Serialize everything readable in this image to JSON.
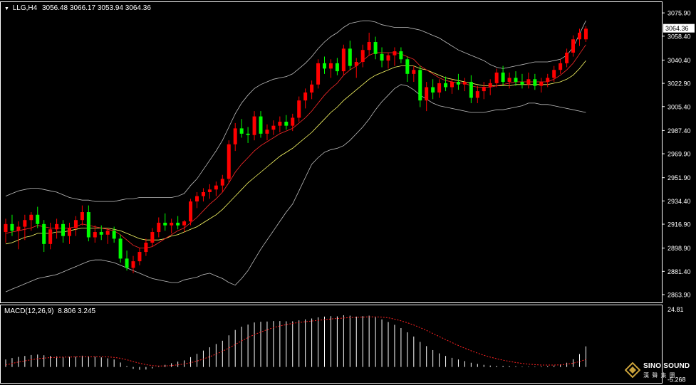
{
  "header": {
    "symbol": "LLG,H4",
    "ohlc": "3056.48 3066.17 3053.94 3064.36"
  },
  "macd_header": {
    "label": "MACD(12,26,9)",
    "values": "8.806 3.245"
  },
  "colors": {
    "background": "#000000",
    "bull": "#ff0000",
    "bear": "#00ff00",
    "ma_fast": "#ff2a2a",
    "ma_slow": "#ffff66",
    "bollinger": "#bfbfbf",
    "macd_hist": "#ffffff",
    "macd_signal": "#ff2222",
    "frame": "#ffffff"
  },
  "watermark": {
    "name": "SINO SOUND",
    "sub": "漢 聲 集 團",
    "icon": "diamond-logo-icon"
  },
  "chart_data": [
    {
      "type": "candlestick",
      "title": "LLG,H4",
      "ylim": [
        2858,
        3084
      ],
      "y_ticks": [
        "3075.90",
        "3058.40",
        "3040.40",
        "3022.90",
        "3005.40",
        "2987.40",
        "2969.90",
        "2951.90",
        "2934.40",
        "2916.90",
        "2898.90",
        "2881.40",
        "2863.90"
      ],
      "current_price_label": "3064.36",
      "ohlc": [
        [
          2911,
          2921,
          2903,
          2917
        ],
        [
          2917,
          2924,
          2908,
          2912
        ],
        [
          2912,
          2919,
          2898,
          2915
        ],
        [
          2915,
          2924,
          2905,
          2920
        ],
        [
          2920,
          2926,
          2912,
          2924
        ],
        [
          2924,
          2930,
          2914,
          2917
        ],
        [
          2917,
          2920,
          2896,
          2902
        ],
        [
          2902,
          2918,
          2898,
          2913
        ],
        [
          2913,
          2921,
          2906,
          2917
        ],
        [
          2917,
          2920,
          2903,
          2908
        ],
        [
          2908,
          2918,
          2902,
          2914
        ],
        [
          2914,
          2923,
          2908,
          2920
        ],
        [
          2920,
          2931,
          2916,
          2926
        ],
        [
          2926,
          2931,
          2904,
          2907
        ],
        [
          2907,
          2916,
          2903,
          2911
        ],
        [
          2911,
          2916,
          2905,
          2909
        ],
        [
          2909,
          2914,
          2902,
          2912
        ],
        [
          2912,
          2915,
          2903,
          2906
        ],
        [
          2906,
          2909,
          2888,
          2891
        ],
        [
          2891,
          2897,
          2882,
          2884
        ],
        [
          2884,
          2893,
          2880,
          2889
        ],
        [
          2889,
          2899,
          2886,
          2896
        ],
        [
          2896,
          2906,
          2893,
          2903
        ],
        [
          2903,
          2914,
          2900,
          2911
        ],
        [
          2911,
          2922,
          2907,
          2918
        ],
        [
          2918,
          2925,
          2912,
          2916
        ],
        [
          2916,
          2921,
          2910,
          2918
        ],
        [
          2918,
          2923,
          2913,
          2916
        ],
        [
          2916,
          2920,
          2911,
          2919
        ],
        [
          2919,
          2936,
          2916,
          2934
        ],
        [
          2934,
          2941,
          2929,
          2938
        ],
        [
          2938,
          2944,
          2934,
          2941
        ],
        [
          2941,
          2947,
          2936,
          2943
        ],
        [
          2943,
          2949,
          2938,
          2946
        ],
        [
          2946,
          2954,
          2941,
          2951
        ],
        [
          2951,
          2980,
          2948,
          2977
        ],
        [
          2977,
          2993,
          2972,
          2989
        ],
        [
          2989,
          2996,
          2982,
          2985
        ],
        [
          2985,
          2990,
          2978,
          2984
        ],
        [
          2984,
          3002,
          2980,
          2998
        ],
        [
          2998,
          3002,
          2982,
          2985
        ],
        [
          2985,
          2992,
          2980,
          2988
        ],
        [
          2988,
          2995,
          2984,
          2991
        ],
        [
          2991,
          2998,
          2986,
          2994
        ],
        [
          2994,
          2999,
          2988,
          2991
        ],
        [
          2991,
          3000,
          2987,
          2997
        ],
        [
          2997,
          3013,
          2994,
          3010
        ],
        [
          3010,
          3019,
          3004,
          3016
        ],
        [
          3016,
          3025,
          3011,
          3022
        ],
        [
          3022,
          3041,
          3019,
          3038
        ],
        [
          3038,
          3043,
          3030,
          3034
        ],
        [
          3034,
          3041,
          3027,
          3038
        ],
        [
          3038,
          3042,
          3029,
          3032
        ],
        [
          3032,
          3052,
          3029,
          3049
        ],
        [
          3049,
          3055,
          3033,
          3036
        ],
        [
          3036,
          3042,
          3027,
          3039
        ],
        [
          3039,
          3052,
          3035,
          3048
        ],
        [
          3048,
          3061,
          3044,
          3054
        ],
        [
          3054,
          3058,
          3041,
          3045
        ],
        [
          3045,
          3050,
          3035,
          3040
        ],
        [
          3040,
          3046,
          3034,
          3044
        ],
        [
          3044,
          3050,
          3036,
          3047
        ],
        [
          3047,
          3050,
          3038,
          3041
        ],
        [
          3041,
          3043,
          3024,
          3030
        ],
        [
          3030,
          3036,
          3024,
          3033
        ],
        [
          3033,
          3036,
          3005,
          3010
        ],
        [
          3010,
          3024,
          3002,
          3020
        ],
        [
          3020,
          3026,
          3011,
          3016
        ],
        [
          3016,
          3026,
          3012,
          3023
        ],
        [
          3023,
          3028,
          3017,
          3020
        ],
        [
          3020,
          3026,
          3015,
          3024
        ],
        [
          3024,
          3030,
          3018,
          3022
        ],
        [
          3022,
          3027,
          3017,
          3024
        ],
        [
          3024,
          3029,
          3008,
          3012
        ],
        [
          3012,
          3021,
          3008,
          3017
        ],
        [
          3017,
          3024,
          3011,
          3020
        ],
        [
          3020,
          3026,
          3014,
          3023
        ],
        [
          3023,
          3034,
          3020,
          3031
        ],
        [
          3031,
          3036,
          3021,
          3024
        ],
        [
          3024,
          3031,
          3019,
          3027
        ],
        [
          3027,
          3032,
          3021,
          3024
        ],
        [
          3024,
          3030,
          3019,
          3022
        ],
        [
          3022,
          3031,
          3019,
          3026
        ],
        [
          3026,
          3030,
          3018,
          3021
        ],
        [
          3021,
          3027,
          3016,
          3024
        ],
        [
          3024,
          3030,
          3020,
          3027
        ],
        [
          3027,
          3036,
          3024,
          3033
        ],
        [
          3033,
          3041,
          3030,
          3038
        ],
        [
          3038,
          3049,
          3035,
          3046
        ],
        [
          3046,
          3059,
          3043,
          3056
        ],
        [
          3056,
          3064,
          3051,
          3061
        ],
        [
          3056,
          3066,
          3054,
          3064
        ]
      ],
      "ma_fast": [
        2910,
        2911,
        2912,
        2913,
        2914,
        2916,
        2915,
        2914,
        2914,
        2914,
        2914,
        2915,
        2917,
        2916,
        2915,
        2914,
        2913,
        2912,
        2909,
        2905,
        2901,
        2899,
        2899,
        2900,
        2903,
        2906,
        2909,
        2912,
        2914,
        2918,
        2922,
        2927,
        2932,
        2936,
        2941,
        2948,
        2956,
        2962,
        2967,
        2972,
        2976,
        2979,
        2982,
        2985,
        2987,
        2989,
        2993,
        2997,
        3002,
        3008,
        3014,
        3019,
        3023,
        3029,
        3033,
        3036,
        3040,
        3044,
        3046,
        3046,
        3046,
        3046,
        3045,
        3043,
        3041,
        3036,
        3033,
        3030,
        3027,
        3025,
        3024,
        3023,
        3023,
        3021,
        3020,
        3020,
        3020,
        3021,
        3022,
        3023,
        3024,
        3024,
        3024,
        3024,
        3024,
        3024,
        3026,
        3029,
        3033,
        3038,
        3045,
        3052
      ],
      "ma_slow": [
        2902,
        2903,
        2905,
        2907,
        2908,
        2910,
        2910,
        2910,
        2911,
        2911,
        2912,
        2913,
        2914,
        2914,
        2914,
        2914,
        2914,
        2913,
        2912,
        2910,
        2908,
        2906,
        2905,
        2905,
        2905,
        2906,
        2908,
        2909,
        2911,
        2913,
        2915,
        2918,
        2921,
        2924,
        2928,
        2933,
        2938,
        2943,
        2948,
        2952,
        2956,
        2960,
        2964,
        2968,
        2971,
        2974,
        2978,
        2982,
        2986,
        2991,
        2996,
        3001,
        3005,
        3010,
        3014,
        3018,
        3022,
        3026,
        3029,
        3031,
        3033,
        3035,
        3036,
        3036,
        3036,
        3034,
        3033,
        3031,
        3029,
        3027,
        3026,
        3025,
        3024,
        3023,
        3022,
        3021,
        3021,
        3021,
        3021,
        3021,
        3022,
        3022,
        3022,
        3022,
        3022,
        3022,
        3023,
        3024,
        3026,
        3029,
        3034,
        3040
      ],
      "bb_upper": [
        2938,
        2940,
        2942,
        2943,
        2944,
        2944,
        2943,
        2942,
        2941,
        2939,
        2937,
        2936,
        2935,
        2935,
        2934,
        2934,
        2934,
        2934,
        2935,
        2936,
        2936,
        2937,
        2937,
        2937,
        2937,
        2937,
        2937,
        2938,
        2940,
        2946,
        2951,
        2958,
        2965,
        2972,
        2980,
        2990,
        3000,
        3008,
        3014,
        3019,
        3022,
        3024,
        3026,
        3027,
        3028,
        3030,
        3034,
        3038,
        3043,
        3049,
        3054,
        3058,
        3061,
        3065,
        3068,
        3069,
        3070,
        3070,
        3069,
        3067,
        3066,
        3065,
        3065,
        3065,
        3064,
        3063,
        3061,
        3059,
        3057,
        3054,
        3051,
        3048,
        3046,
        3044,
        3042,
        3040,
        3037,
        3035,
        3034,
        3035,
        3036,
        3037,
        3038,
        3039,
        3039,
        3039,
        3040,
        3041,
        3044,
        3050,
        3060,
        3070
      ],
      "bb_lower": [
        2866,
        2868,
        2870,
        2872,
        2874,
        2876,
        2877,
        2878,
        2879,
        2881,
        2883,
        2885,
        2887,
        2889,
        2890,
        2890,
        2889,
        2888,
        2886,
        2884,
        2882,
        2880,
        2878,
        2876,
        2875,
        2874,
        2873,
        2873,
        2875,
        2876,
        2877,
        2879,
        2880,
        2878,
        2876,
        2873,
        2871,
        2876,
        2882,
        2890,
        2898,
        2905,
        2912,
        2919,
        2926,
        2932,
        2942,
        2952,
        2962,
        2967,
        2971,
        2973,
        2974,
        2976,
        2980,
        2985,
        2990,
        2996,
        3003,
        3009,
        3014,
        3019,
        3022,
        3021,
        3018,
        3014,
        3011,
        3008,
        3006,
        3005,
        3004,
        3003,
        3002,
        3001,
        3001,
        3001,
        3002,
        3003,
        3003,
        3004,
        3005,
        3006,
        3008,
        3008,
        3007,
        3007,
        3006,
        3005,
        3004,
        3003,
        3002,
        3001
      ]
    },
    {
      "type": "bar",
      "title": "MACD(12,26,9)",
      "ylim": [
        -5.268,
        24.81
      ],
      "y_ticks": [
        "24.81",
        "-5.268"
      ],
      "histogram": [
        3.2,
        3.8,
        4.3,
        4.7,
        5.1,
        5.3,
        5.0,
        4.7,
        4.5,
        4.3,
        4.3,
        4.4,
        4.8,
        4.6,
        4.4,
        4.1,
        3.7,
        3.2,
        1.9,
        0.4,
        -0.8,
        -1.2,
        -1.1,
        -0.6,
        0.2,
        0.9,
        1.6,
        2.3,
        2.8,
        4.2,
        5.6,
        7.0,
        8.4,
        9.8,
        11.2,
        13.5,
        15.8,
        17.2,
        18.1,
        19.0,
        19.3,
        19.4,
        19.6,
        19.6,
        19.5,
        19.5,
        19.9,
        20.3,
        20.7,
        21.2,
        21.5,
        21.7,
        21.6,
        22.1,
        21.9,
        21.5,
        21.7,
        21.9,
        21.2,
        20.3,
        19.2,
        18.0,
        16.6,
        14.8,
        13.0,
        10.7,
        8.9,
        7.2,
        5.8,
        4.7,
        3.9,
        3.2,
        2.5,
        1.8,
        1.3,
        0.9,
        0.6,
        0.5,
        0.5,
        0.4,
        0.3,
        0.2,
        0.2,
        0.2,
        0.3,
        0.4,
        0.6,
        1.1,
        1.8,
        3.3,
        5.5,
        8.8
      ],
      "signal": [
        0.8,
        1.5,
        2.1,
        2.6,
        3.1,
        3.5,
        3.8,
        4.0,
        4.1,
        4.2,
        4.2,
        4.3,
        4.4,
        4.4,
        4.4,
        4.4,
        4.3,
        4.1,
        3.7,
        3.1,
        2.3,
        1.6,
        1.0,
        0.6,
        0.4,
        0.4,
        0.6,
        0.9,
        1.3,
        1.8,
        2.5,
        3.4,
        4.4,
        5.5,
        6.7,
        8.1,
        9.6,
        11.1,
        12.5,
        13.8,
        14.9,
        15.9,
        16.8,
        17.5,
        18.1,
        18.6,
        19.0,
        19.3,
        19.6,
        19.9,
        20.2,
        20.5,
        20.7,
        20.9,
        21.1,
        21.2,
        21.3,
        21.4,
        21.4,
        21.3,
        21.0,
        20.4,
        19.7,
        18.9,
        17.9,
        16.8,
        15.6,
        14.3,
        13.0,
        11.7,
        10.4,
        9.2,
        8.0,
        6.9,
        5.9,
        5.0,
        4.2,
        3.5,
        2.9,
        2.4,
        1.9,
        1.5,
        1.2,
        1.0,
        0.8,
        0.8,
        0.8,
        0.9,
        1.2,
        1.6,
        2.3,
        3.2
      ]
    }
  ]
}
